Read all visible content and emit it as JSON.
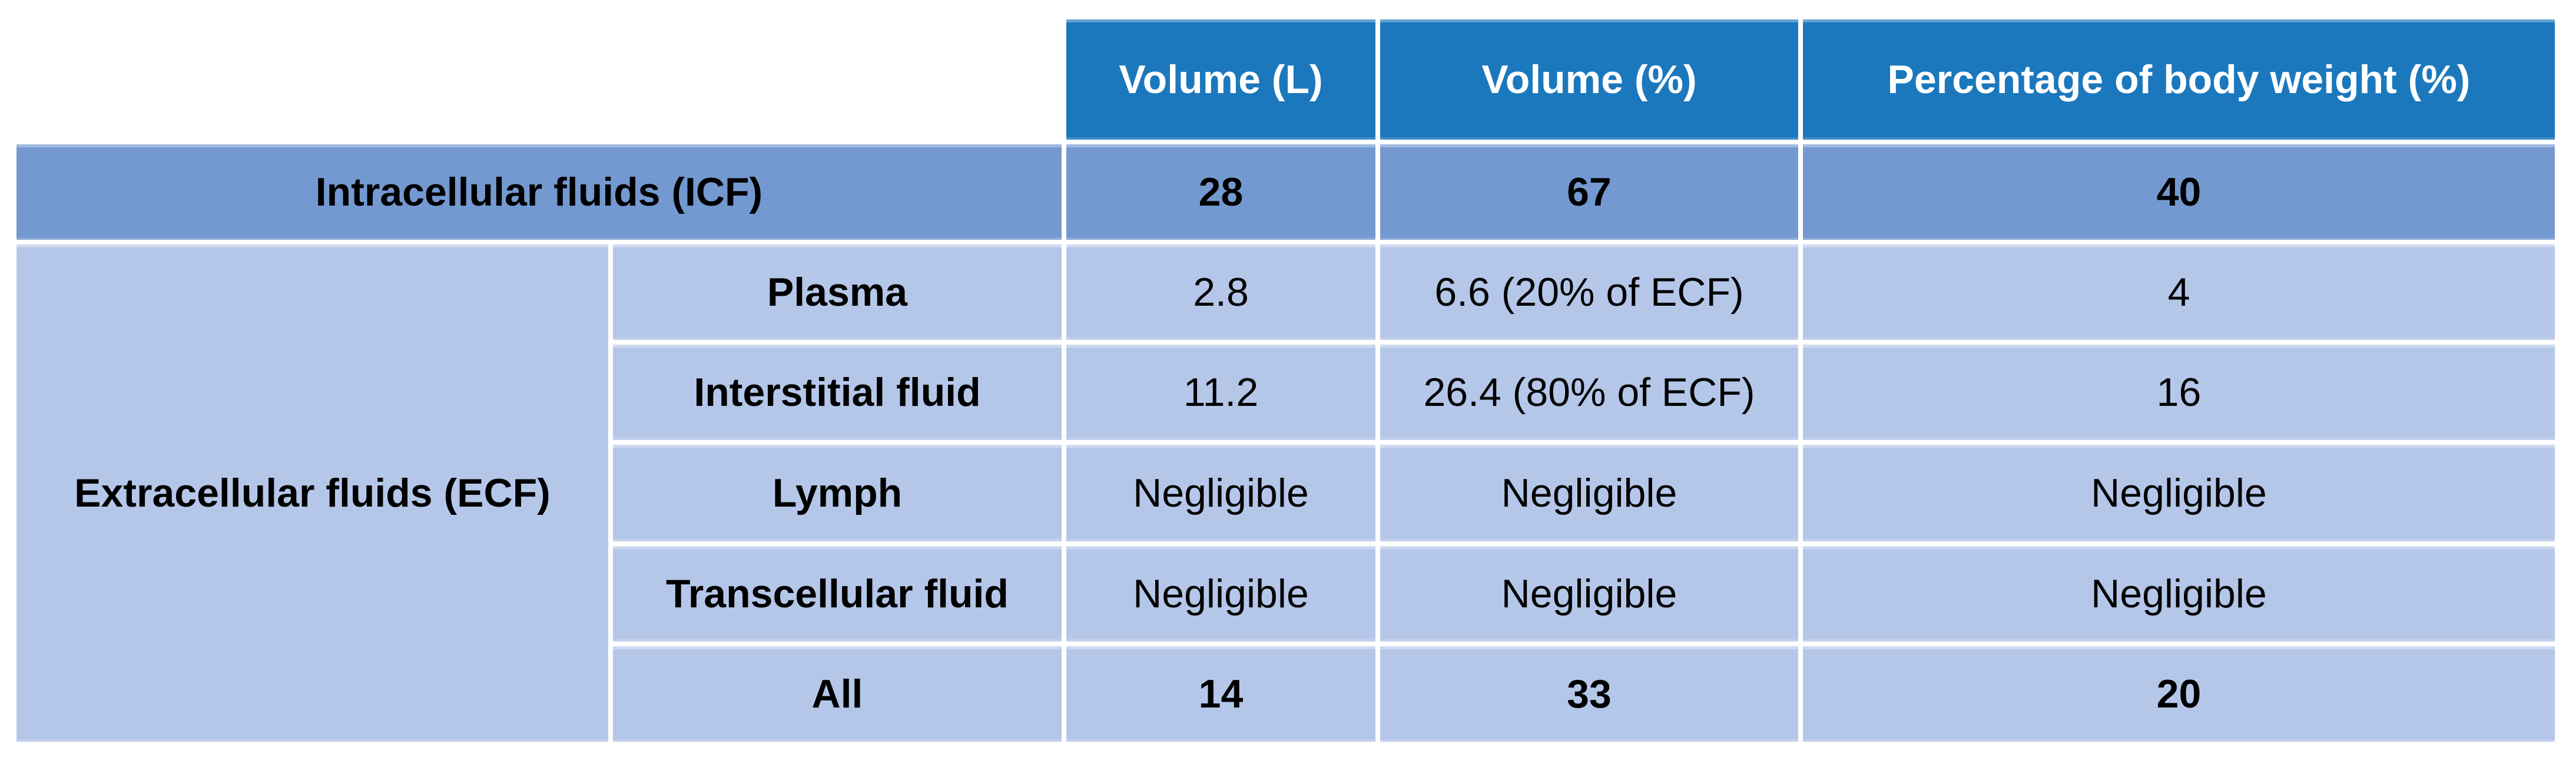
{
  "table": {
    "header": {
      "volume_l": "Volume (L)",
      "volume_pct": "Volume (%)",
      "body_weight_pct": "Percentage of body weight (%)"
    },
    "icf": {
      "label": "Intracellular fluids (ICF)",
      "volume_l": "28",
      "volume_pct": "67",
      "body_weight_pct": "40"
    },
    "ecf": {
      "label": "Extracellular fluids (ECF)",
      "rows": [
        {
          "label": "Plasma",
          "volume_l": "2.8",
          "volume_pct": "6.6 (20% of ECF)",
          "body_weight_pct": "4"
        },
        {
          "label": "Interstitial fluid",
          "volume_l": "11.2",
          "volume_pct": "26.4 (80% of ECF)",
          "body_weight_pct": "16"
        },
        {
          "label": "Lymph",
          "volume_l": "Negligible",
          "volume_pct": "Negligible",
          "body_weight_pct": "Negligible"
        },
        {
          "label": "Transcellular fluid",
          "volume_l": "Negligible",
          "volume_pct": "Negligible",
          "body_weight_pct": "Negligible"
        },
        {
          "label": "All",
          "volume_l": "14",
          "volume_pct": "33",
          "body_weight_pct": "20"
        }
      ]
    },
    "colors": {
      "header_bg": "#1B78BD",
      "icf_row_bg": "#7399D0",
      "ecf_row_bg": "#B5C7E9",
      "border": "#FFFFFF",
      "header_text": "#FFFFFF",
      "body_text": "#000000"
    }
  }
}
